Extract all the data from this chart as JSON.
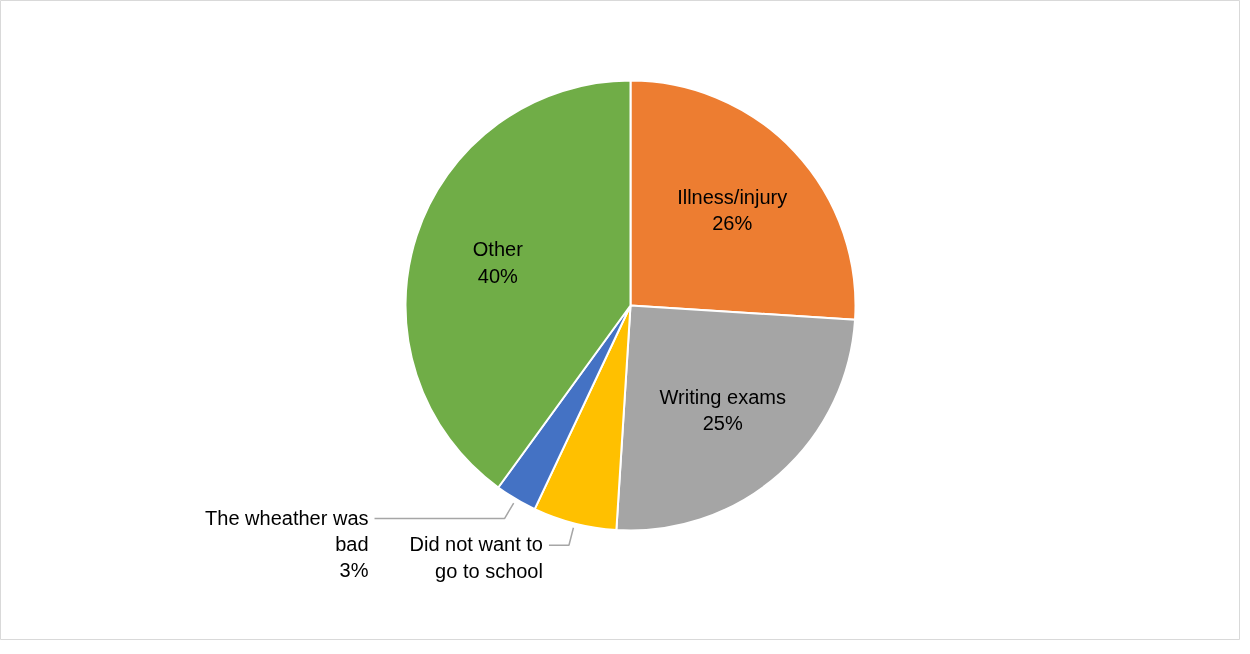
{
  "chart_data": {
    "type": "pie",
    "categories": [
      "Illness/injury",
      "Writing exams",
      "Did not want to go to school",
      "The wheather was bad",
      "Other"
    ],
    "values": [
      26,
      25,
      6,
      3,
      40
    ],
    "colors": [
      "#ed7d31",
      "#a5a5a5",
      "#ffc000",
      "#4472c4",
      "#70ad47"
    ],
    "value_labels": [
      "26%",
      "25%",
      null,
      "3%",
      "40%"
    ],
    "legend": false
  }
}
